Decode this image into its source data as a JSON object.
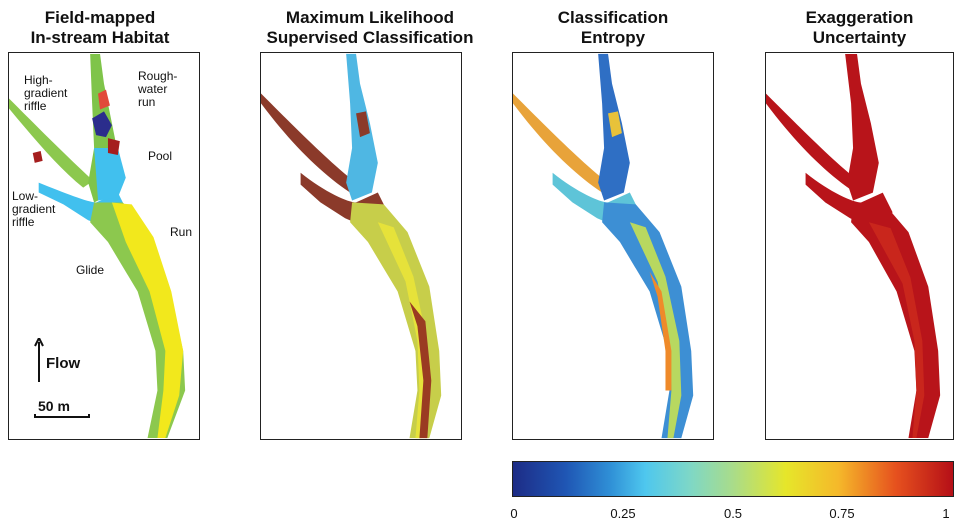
{
  "titles": {
    "p1": [
      "Field-mapped",
      "In-stream Habitat"
    ],
    "p2": [
      "Maximum Likelihood",
      "Supervised Classification"
    ],
    "p3": [
      "Classification",
      "Entropy"
    ],
    "p4": [
      "Exaggeration",
      "Uncertainty"
    ]
  },
  "labels": {
    "high_gradient_riffle": [
      "High-",
      "gradient",
      "riffle"
    ],
    "rough_water_run": [
      "Rough-",
      "water",
      "run"
    ],
    "pool": "Pool",
    "low_gradient_riffle": [
      "Low-",
      "gradient",
      "riffle"
    ],
    "run": "Run",
    "glide": "Glide",
    "flow": "Flow",
    "scale": "50 m"
  },
  "colorbar": {
    "ticks": [
      "0",
      "0.25",
      "0.5",
      "0.75",
      "1"
    ],
    "colors": [
      "#1d2c86",
      "#2f8fd6",
      "#4ec7ee",
      "#a9dc8a",
      "#e6e62a",
      "#f5b82a",
      "#e6511e",
      "#b50f17"
    ]
  }
}
